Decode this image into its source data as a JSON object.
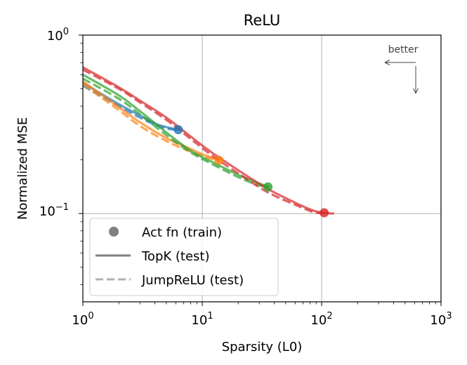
{
  "chart_data": {
    "type": "line",
    "title": "ReLU",
    "xlabel": "Sparsity (L0)",
    "ylabel": "Normalized MSE",
    "xscale": "log",
    "yscale": "log",
    "xlim": [
      1,
      1000
    ],
    "ylim": [
      0.032,
      1
    ],
    "grid": true,
    "x_ticks": [
      {
        "base": "10",
        "exp": "0"
      },
      {
        "base": "10",
        "exp": "1"
      },
      {
        "base": "10",
        "exp": "2"
      },
      {
        "base": "10",
        "exp": "3"
      }
    ],
    "y_ticks": [
      {
        "value": 0.1,
        "base": "10",
        "exp": "−1"
      },
      {
        "value": 1,
        "base": "10",
        "exp": "0"
      }
    ],
    "annotation": "better",
    "legend": {
      "placement": "lower-left",
      "entries": [
        {
          "label": "Act fn (train)",
          "marker": "dot",
          "color": "#808080"
        },
        {
          "label": "TopK (test)",
          "marker": "solid",
          "color": "#808080"
        },
        {
          "label": "JumpReLU (test)",
          "marker": "dashed",
          "color": "#b0b0b0"
        }
      ]
    },
    "series": [
      {
        "color": "#1f77b4",
        "train_point": [
          6.3,
          0.295
        ],
        "topk": [
          [
            1.0,
            0.54
          ],
          [
            2.0,
            0.41
          ],
          [
            3.0,
            0.355
          ],
          [
            4.0,
            0.32
          ],
          [
            5.0,
            0.305
          ],
          [
            6.3,
            0.295
          ]
        ],
        "jumprelu": [
          [
            1.0,
            0.52
          ],
          [
            2.0,
            0.4
          ],
          [
            3.0,
            0.345
          ],
          [
            4.0,
            0.315
          ],
          [
            5.0,
            0.3
          ],
          [
            6.3,
            0.293
          ]
        ]
      },
      {
        "color": "#ff7f0e",
        "train_point": [
          13.8,
          0.199
        ],
        "topk": [
          [
            1.0,
            0.55
          ],
          [
            2.0,
            0.395
          ],
          [
            3.0,
            0.325
          ],
          [
            5.0,
            0.265
          ],
          [
            8.0,
            0.23
          ],
          [
            10.0,
            0.215
          ],
          [
            13.8,
            0.2
          ]
        ],
        "jumprelu": [
          [
            1.0,
            0.53
          ],
          [
            2.0,
            0.38
          ],
          [
            3.0,
            0.31
          ],
          [
            5.0,
            0.255
          ],
          [
            8.0,
            0.222
          ],
          [
            10.0,
            0.21
          ],
          [
            13.8,
            0.197
          ]
        ]
      },
      {
        "color": "#2ca02c",
        "train_point": [
          35.5,
          0.141
        ],
        "topk": [
          [
            1.0,
            0.6
          ],
          [
            2.0,
            0.46
          ],
          [
            3.0,
            0.375
          ],
          [
            5.0,
            0.285
          ],
          [
            8.0,
            0.225
          ],
          [
            12.0,
            0.195
          ],
          [
            20.0,
            0.165
          ],
          [
            28.0,
            0.15
          ],
          [
            35.5,
            0.142
          ]
        ],
        "jumprelu": [
          [
            1.0,
            0.57
          ],
          [
            2.0,
            0.44
          ],
          [
            3.0,
            0.36
          ],
          [
            5.0,
            0.275
          ],
          [
            8.0,
            0.22
          ],
          [
            12.0,
            0.19
          ],
          [
            20.0,
            0.16
          ],
          [
            28.0,
            0.146
          ],
          [
            35.5,
            0.14
          ]
        ]
      },
      {
        "color": "#d62728",
        "train_point": [
          105,
          0.101
        ],
        "topk": [
          [
            1.0,
            0.66
          ],
          [
            2.0,
            0.51
          ],
          [
            3.0,
            0.43
          ],
          [
            5.0,
            0.345
          ],
          [
            8.0,
            0.27
          ],
          [
            12.0,
            0.22
          ],
          [
            20.0,
            0.175
          ],
          [
            35.0,
            0.138
          ],
          [
            60.0,
            0.115
          ],
          [
            85.0,
            0.104
          ],
          [
            105.0,
            0.101
          ],
          [
            125.0,
            0.1
          ]
        ],
        "jumprelu": [
          [
            1.0,
            0.64
          ],
          [
            2.0,
            0.5
          ],
          [
            3.0,
            0.42
          ],
          [
            5.0,
            0.335
          ],
          [
            8.0,
            0.262
          ],
          [
            12.0,
            0.212
          ],
          [
            20.0,
            0.168
          ],
          [
            35.0,
            0.132
          ],
          [
            60.0,
            0.112
          ],
          [
            85.0,
            0.102
          ],
          [
            105.0,
            0.1
          ]
        ]
      }
    ]
  }
}
